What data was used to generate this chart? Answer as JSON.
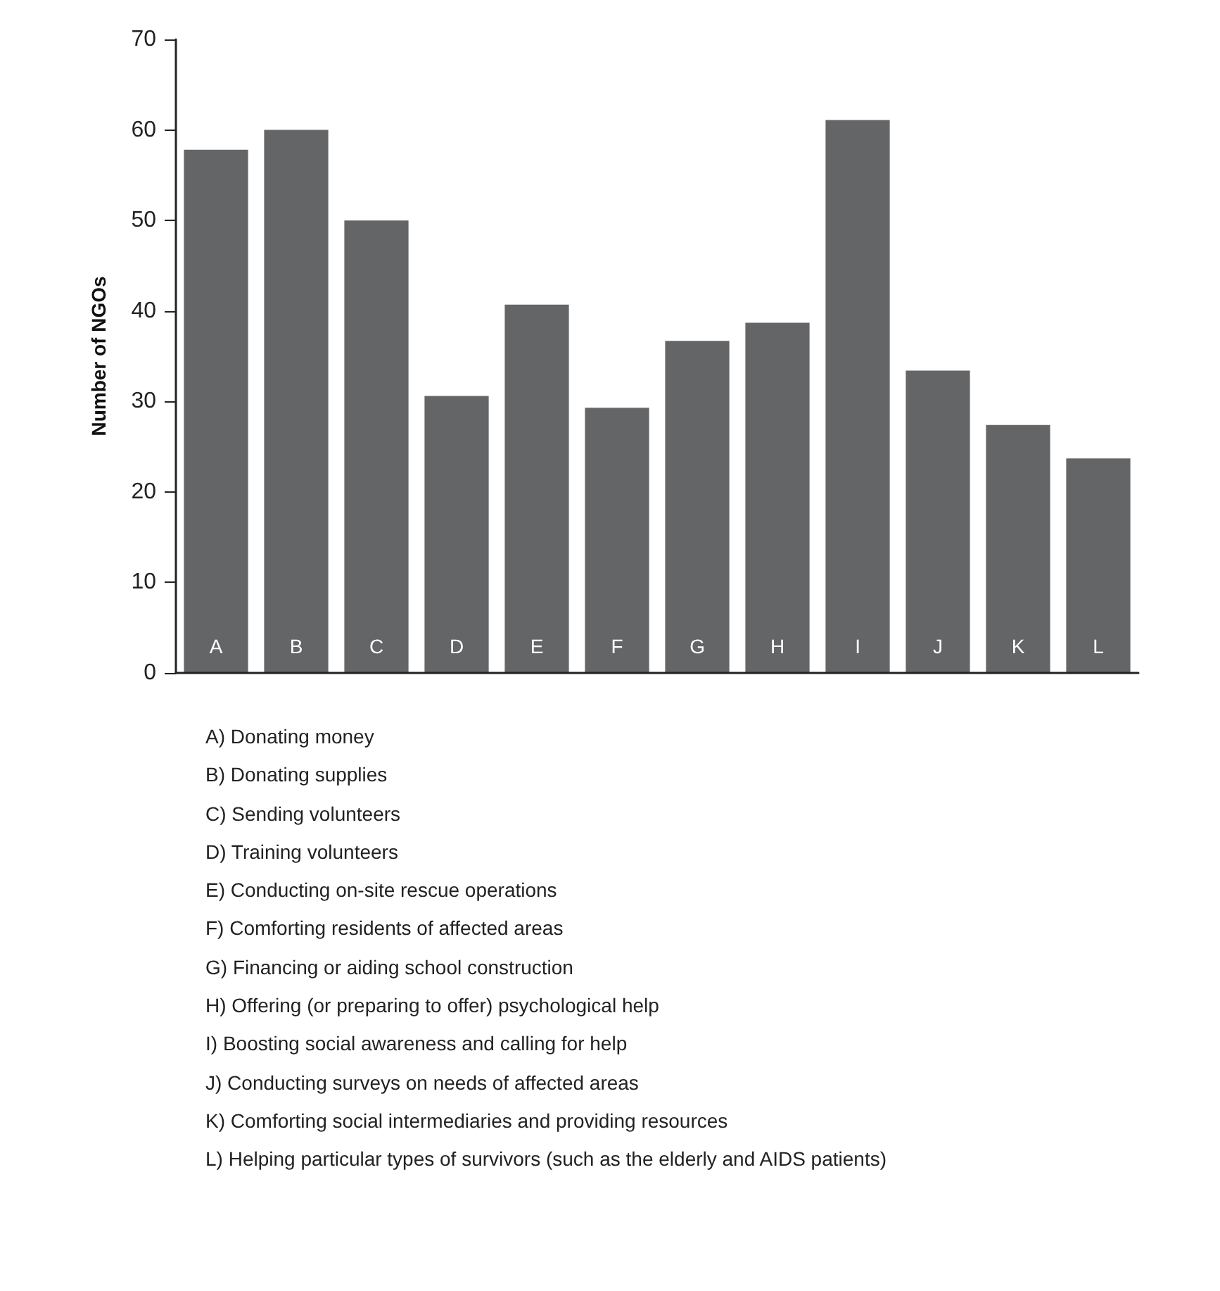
{
  "chart_data": {
    "type": "bar",
    "ylabel": "Number of NGOs",
    "categories": [
      "A",
      "B",
      "C",
      "D",
      "E",
      "F",
      "G",
      "H",
      "I",
      "J",
      "K",
      "L"
    ],
    "values": [
      57.8,
      60,
      50,
      30.6,
      40.7,
      29.3,
      36.7,
      38.7,
      61.1,
      33.4,
      27.4,
      23.7
    ],
    "color": "#646567",
    "ylim": [
      0,
      70
    ],
    "yticks": [
      0,
      10,
      20,
      30,
      40,
      50,
      60,
      70
    ],
    "grid": false,
    "annotations": [
      "A) Donating money",
      "B) Donating supplies",
      "C) Sending volunteers",
      "D) Training volunteers",
      "E) Conducting on-site rescue operations",
      "F) Comforting residents of affected areas",
      "G) Financing or aiding school construction",
      "H) Offering (or preparing to offer) psychological help",
      "I) Boosting social awareness and calling for help",
      "J) Conducting surveys on needs of affected areas",
      "K) Comforting social intermediaries and providing resources",
      "L) Helping particular types of survivors (such as the elderly and AIDS patients)"
    ]
  }
}
